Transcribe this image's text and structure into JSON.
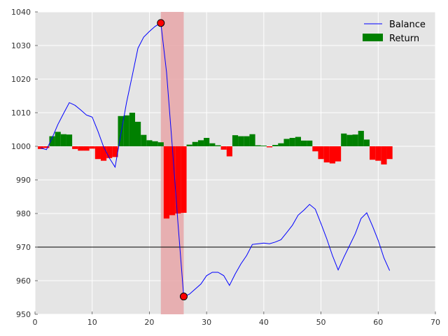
{
  "chart_data": {
    "type": "line",
    "xlim": [
      0,
      70
    ],
    "ylim": [
      950,
      1040
    ],
    "xticks": [
      0,
      10,
      20,
      30,
      40,
      50,
      60,
      70
    ],
    "yticks": [
      950,
      960,
      970,
      980,
      990,
      1000,
      1010,
      1020,
      1030,
      1040
    ],
    "xtick_labels": [
      "0",
      "10",
      "20",
      "30",
      "40",
      "50",
      "60",
      "70"
    ],
    "ytick_labels": [
      "950",
      "960",
      "970",
      "980",
      "990",
      "1000",
      "1010",
      "1020",
      "1030",
      "1040"
    ],
    "grid": true,
    "legend_position": "top-right",
    "background_color": "#e5e5e5",
    "baseline": 1000,
    "reference_line": {
      "y": 970,
      "color": "#000000"
    },
    "highlight_span": {
      "x_start": 22,
      "x_end": 26,
      "color": "#e8a6a8"
    },
    "series": [
      {
        "name": "Balance",
        "type": "line",
        "color": "#0000ff",
        "x": [
          1,
          2,
          3,
          4,
          5,
          6,
          7,
          8,
          9,
          10,
          11,
          12,
          13,
          14,
          15,
          16,
          17,
          18,
          19,
          20,
          21,
          22,
          23,
          24,
          25,
          26,
          27,
          28,
          29,
          30,
          31,
          32,
          33,
          34,
          35,
          36,
          37,
          38,
          39,
          40,
          41,
          42,
          43,
          44,
          45,
          46,
          47,
          48,
          49,
          50,
          51,
          52,
          53,
          54,
          55,
          56,
          57,
          58,
          59,
          60,
          61,
          62
        ],
        "y": [
          999.5,
          999.0,
          1002.5,
          1006.5,
          1009.8,
          1013.0,
          1012.2,
          1010.8,
          1009.3,
          1008.7,
          1004.5,
          999.8,
          996.5,
          993.8,
          1003.5,
          1013.0,
          1021.0,
          1029.2,
          1032.5,
          1034.2,
          1035.7,
          1036.7,
          1022.0,
          1000.0,
          977.0,
          955.3,
          956.0,
          957.5,
          959.0,
          961.5,
          962.5,
          962.5,
          961.5,
          958.6,
          962.0,
          965.0,
          967.5,
          970.8,
          971.0,
          971.2,
          971.0,
          971.5,
          972.2,
          974.3,
          976.5,
          979.5,
          981.0,
          982.7,
          981.3,
          977.0,
          972.5,
          967.5,
          963.2,
          967.0,
          970.5,
          974.0,
          978.5,
          980.2,
          976.3,
          972.0,
          966.8,
          963.0
        ]
      },
      {
        "name": "Return",
        "type": "bar",
        "color_positive": "#008000",
        "color_negative": "#ff0000",
        "x": [
          1,
          2,
          3,
          4,
          5,
          6,
          7,
          8,
          9,
          10,
          11,
          12,
          13,
          14,
          15,
          16,
          17,
          18,
          19,
          20,
          21,
          22,
          23,
          24,
          25,
          26,
          27,
          28,
          29,
          30,
          31,
          32,
          33,
          34,
          35,
          36,
          37,
          38,
          39,
          40,
          41,
          42,
          43,
          44,
          45,
          46,
          47,
          48,
          49,
          50,
          51,
          52,
          53,
          54,
          55,
          56,
          57,
          58,
          59,
          60,
          61,
          62
        ],
        "y": [
          -0.8,
          -0.5,
          3.0,
          4.3,
          3.6,
          3.5,
          -0.8,
          -1.3,
          -1.3,
          -0.7,
          -3.8,
          -4.3,
          -3.5,
          -3.2,
          9.0,
          9.2,
          10.0,
          7.3,
          3.4,
          1.8,
          1.5,
          1.2,
          -21.5,
          -20.5,
          -20.0,
          -19.8,
          0.5,
          1.3,
          1.8,
          2.5,
          0.9,
          0.3,
          -1.0,
          -3.0,
          3.3,
          3.0,
          3.0,
          3.6,
          0.3,
          0.2,
          -0.3,
          0.4,
          0.9,
          2.2,
          2.5,
          2.8,
          1.7,
          1.7,
          -1.5,
          -3.8,
          -4.8,
          -5.1,
          -4.5,
          3.8,
          3.4,
          3.5,
          4.6,
          2.0,
          -4.0,
          -4.3,
          -5.4,
          -3.8
        ]
      }
    ],
    "markers": [
      {
        "x": 22,
        "y": 1036.7,
        "color": "#ff0000"
      },
      {
        "x": 26,
        "y": 955.3,
        "color": "#ff0000"
      }
    ]
  }
}
